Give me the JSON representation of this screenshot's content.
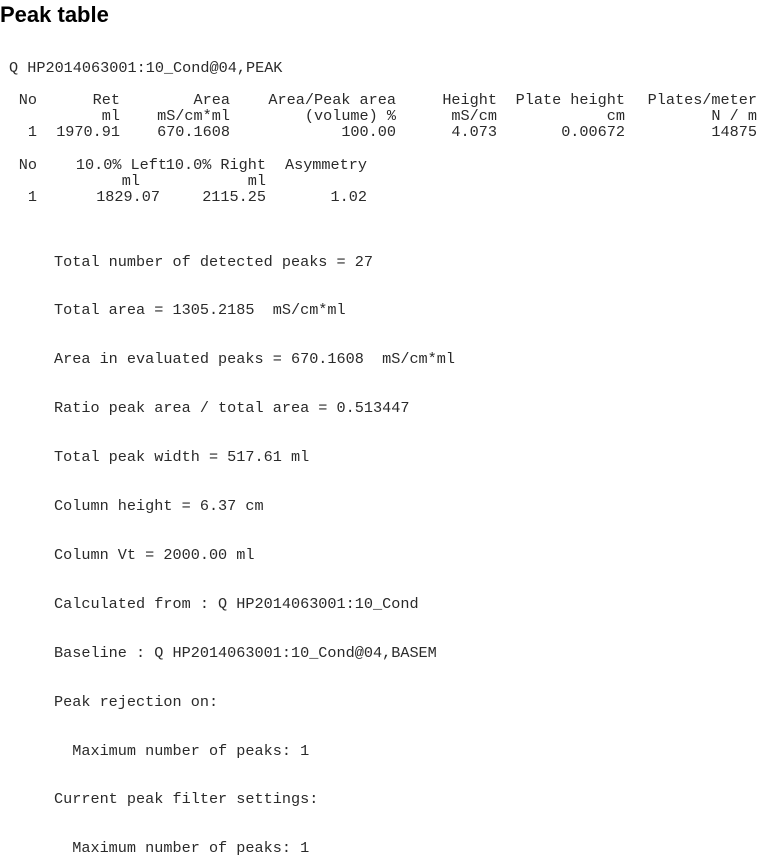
{
  "title": "Peak table",
  "source": "Q HP2014063001:10_Cond@04,PEAK",
  "table1": {
    "headers": [
      "No",
      "Ret",
      "Area",
      "Area/Peak area",
      "Height",
      "Plate height",
      "Plates/meter"
    ],
    "units": [
      "",
      "ml",
      "mS/cm*ml",
      "(volume) %",
      "mS/cm",
      "cm",
      "N / m"
    ],
    "rows": [
      [
        "1",
        "1970.91",
        "670.1608",
        "100.00",
        "4.073",
        "0.00672",
        "14875"
      ]
    ]
  },
  "table2": {
    "headers": [
      "No",
      "10.0% Left",
      "10.0% Right",
      "Asymmetry"
    ],
    "units": [
      "",
      "ml",
      "ml",
      ""
    ],
    "rows": [
      [
        "1",
        "1829.07",
        "2115.25",
        "1.02"
      ]
    ]
  },
  "summary": [
    "Total number of detected peaks = 27",
    "Total area = 1305.2185  mS/cm*ml",
    "Area in evaluated peaks = 670.1608  mS/cm*ml",
    "Ratio peak area / total area = 0.513447",
    "Total peak width = 517.61 ml",
    "Column height = 6.37 cm",
    "Column Vt = 2000.00 ml",
    "Calculated from : Q HP2014063001:10_Cond",
    "Baseline : Q HP2014063001:10_Cond@04,BASEM",
    "Peak rejection on:",
    "  Maximum number of peaks: 1",
    "Current peak filter settings:",
    "  Maximum number of peaks: 1"
  ]
}
